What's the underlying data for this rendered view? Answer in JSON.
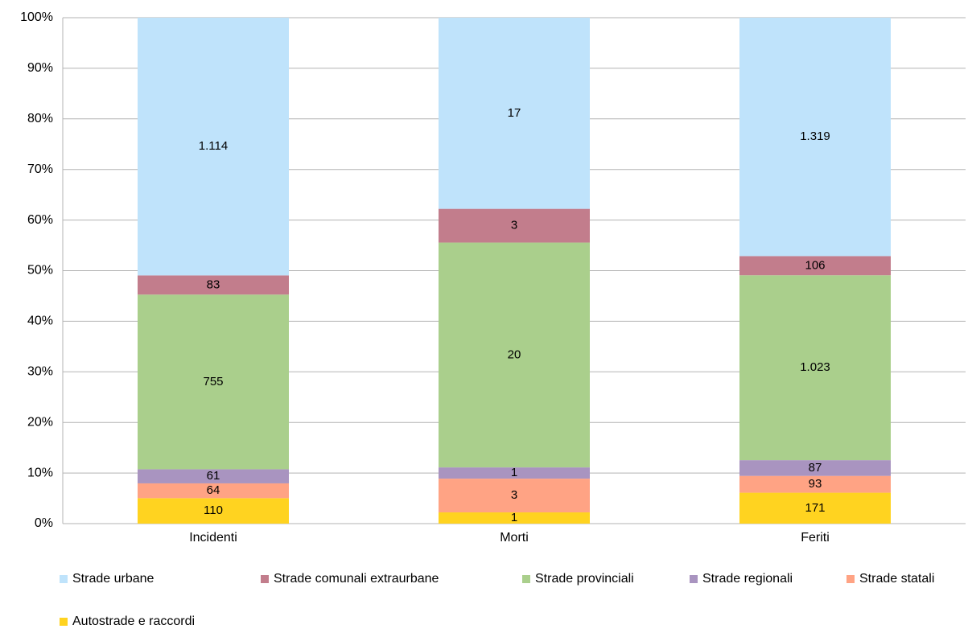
{
  "chart_data": {
    "type": "bar",
    "stacked": "percent",
    "categories": [
      "Incidenti",
      "Morti",
      "Feriti"
    ],
    "series": [
      {
        "name": "Autostrade e raccordi",
        "color": "#ffd320",
        "values": [
          110,
          1,
          171
        ]
      },
      {
        "name": "Strade statali",
        "color": "#ffa384",
        "values": [
          64,
          3,
          93
        ]
      },
      {
        "name": "Strade regionali",
        "color": "#a994c0",
        "values": [
          61,
          1,
          87
        ]
      },
      {
        "name": "Strade provinciali",
        "color": "#aacf8c",
        "values": [
          755,
          20,
          1023
        ],
        "value_labels": [
          "755",
          "20",
          "1.023"
        ]
      },
      {
        "name": "Strade comunali extraurbane",
        "color": "#c27d8c",
        "values": [
          83,
          3,
          106
        ]
      },
      {
        "name": "Strade urbane",
        "color": "#bfe3fb",
        "values": [
          1114,
          17,
          1319
        ],
        "value_labels": [
          "1.114",
          "17",
          "1.319"
        ]
      }
    ],
    "ylim": [
      0,
      100
    ],
    "yticks": [
      {
        "value": 0,
        "label": "0%"
      },
      {
        "value": 10,
        "label": "10%"
      },
      {
        "value": 20,
        "label": "20%"
      },
      {
        "value": 30,
        "label": "30%"
      },
      {
        "value": 40,
        "label": "40%"
      },
      {
        "value": 50,
        "label": "50%"
      },
      {
        "value": 60,
        "label": "60%"
      },
      {
        "value": 70,
        "label": "70%"
      },
      {
        "value": 80,
        "label": "80%"
      },
      {
        "value": 90,
        "label": "90%"
      },
      {
        "value": 100,
        "label": "100%"
      }
    ],
    "grid": true
  }
}
